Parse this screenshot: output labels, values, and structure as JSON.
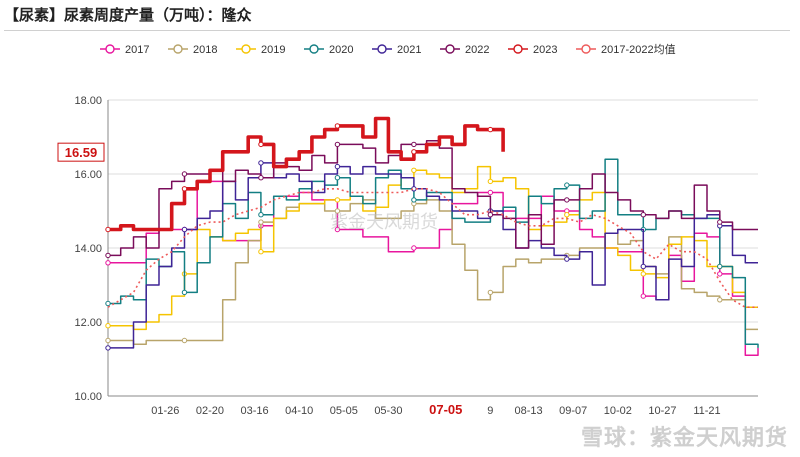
{
  "header": {
    "title": "【尿素】尿素周度产量（万吨）：隆众"
  },
  "watermark": "雪球：紫金天风期货",
  "center_watermark": "紫金天风期货",
  "colors": {
    "2017": "#e8169e",
    "2018": "#b8a46a",
    "2019": "#f5c400",
    "2020": "#137f83",
    "2021": "#3f2496",
    "2022": "#7a0c5a",
    "2023": "#d4161c",
    "avg": "#ee5a5a",
    "current_label": "#cc1111"
  },
  "chart_data": {
    "type": "line",
    "title": "【尿素】尿素周度产量（万吨）：隆众",
    "legend_position": "top",
    "ylim": [
      10,
      18
    ],
    "yticks": [
      "10.00",
      "12.00",
      "14.00",
      "16.00",
      "18.00"
    ],
    "x_tick_labels": [
      "01-26",
      "02-20",
      "03-16",
      "04-10",
      "05-05",
      "05-30",
      "07-05",
      "9",
      "08-13",
      "09-07",
      "10-02",
      "10-27",
      "11-21"
    ],
    "x_tick_weeks": [
      4.5,
      8,
      11.5,
      15,
      18.5,
      22,
      26.5,
      30,
      33,
      36.5,
      40,
      43.5,
      47
    ],
    "highlight_tick": "07-05",
    "current_value": 16.59,
    "series": [
      {
        "name": "2017",
        "step": true,
        "values": [
          13.6,
          13.6,
          13.6,
          14.4,
          14.5,
          14.5,
          14.5,
          15.8,
          15.8,
          14.2,
          14.2,
          14.2,
          14.6,
          15.4,
          15.4,
          15.5,
          15.3,
          15.3,
          14.5,
          14.5,
          14.3,
          14.3,
          13.9,
          13.9,
          14.0,
          14.0,
          14.5,
          15.2,
          15.2,
          15.5,
          15.5,
          15.0,
          14.8,
          14.8,
          15.4,
          15.0,
          15.0,
          14.5,
          14.3,
          14.0,
          13.9,
          13.9,
          12.7,
          12.6,
          13.8,
          13.1,
          14.4,
          14.3,
          13.3,
          12.7,
          11.1,
          11.3
        ]
      },
      {
        "name": "2018",
        "step": true,
        "values": [
          11.5,
          11.5,
          11.4,
          11.5,
          11.5,
          11.5,
          11.5,
          11.5,
          11.5,
          12.6,
          13.6,
          14.2,
          14.7,
          14.8,
          15.1,
          15.2,
          15.2,
          15.0,
          15.0,
          15.2,
          15.3,
          14.8,
          14.8,
          15.0,
          15.2,
          15.3,
          15.0,
          14.1,
          13.4,
          12.6,
          12.8,
          13.5,
          13.7,
          13.6,
          13.7,
          13.7,
          13.8,
          14.0,
          14.0,
          14.4,
          14.1,
          14.2,
          13.5,
          13.3,
          14.3,
          12.9,
          12.8,
          12.7,
          12.6,
          12.6,
          11.8,
          11.8
        ]
      },
      {
        "name": "2019",
        "step": true,
        "values": [
          11.9,
          11.9,
          11.8,
          12.0,
          12.2,
          12.7,
          13.3,
          14.5,
          14.3,
          14.2,
          14.4,
          14.5,
          13.9,
          14.8,
          15.0,
          15.2,
          15.2,
          15.3,
          15.3,
          15.4,
          15.0,
          15.1,
          15.7,
          15.9,
          16.1,
          16.0,
          15.9,
          15.5,
          15.6,
          16.2,
          15.8,
          15.9,
          15.6,
          14.5,
          14.6,
          14.7,
          14.9,
          15.3,
          15.5,
          14.0,
          13.8,
          13.4,
          13.3,
          13.2,
          14.1,
          14.3,
          14.2,
          13.5,
          13.5,
          12.8,
          12.4,
          12.4
        ]
      },
      {
        "name": "2020",
        "step": true,
        "values": [
          12.5,
          12.7,
          12.6,
          13.7,
          13.5,
          13.9,
          12.8,
          13.6,
          14.3,
          15.2,
          14.8,
          15.5,
          14.9,
          15.4,
          15.3,
          15.6,
          15.8,
          15.7,
          15.9,
          15.4,
          15.2,
          15.9,
          16.1,
          15.6,
          15.3,
          15.5,
          15.5,
          14.8,
          14.7,
          14.7,
          15.0,
          15.1,
          14.7,
          15.4,
          15.2,
          15.6,
          15.7,
          14.8,
          15.0,
          16.4,
          14.9,
          14.9,
          14.5,
          14.8,
          15.0,
          14.9,
          14.8,
          14.8,
          13.5,
          13.2,
          11.4,
          11.3
        ]
      },
      {
        "name": "2021",
        "step": true,
        "values": [
          11.3,
          11.3,
          12.0,
          13.0,
          13.5,
          14.0,
          14.5,
          14.8,
          15.0,
          15.8,
          15.3,
          15.9,
          16.3,
          15.9,
          16.0,
          15.8,
          15.5,
          16.0,
          16.2,
          16.0,
          16.2,
          16.0,
          16.0,
          15.9,
          15.6,
          15.4,
          15.3,
          15.0,
          15.0,
          14.8,
          15.0,
          14.5,
          14.0,
          14.2,
          14.0,
          13.8,
          13.7,
          13.9,
          13.0,
          14.4,
          14.5,
          14.5,
          13.5,
          12.6,
          13.7,
          13.5,
          14.8,
          14.9,
          14.6,
          13.8,
          13.6,
          13.6
        ]
      },
      {
        "name": "2022",
        "step": true,
        "values": [
          13.8,
          14.0,
          14.3,
          14.0,
          15.6,
          15.8,
          16.0,
          16.0,
          16.1,
          15.8,
          16.1,
          16.0,
          15.9,
          16.3,
          16.2,
          16.1,
          16.5,
          16.3,
          16.8,
          16.8,
          16.7,
          16.3,
          16.5,
          16.8,
          16.8,
          16.9,
          16.7,
          15.6,
          15.5,
          15.4,
          14.9,
          14.8,
          14.0,
          14.9,
          14.1,
          15.3,
          15.3,
          15.6,
          16.0,
          15.5,
          15.3,
          15.0,
          14.9,
          14.8,
          15.0,
          14.8,
          15.7,
          15.0,
          14.7,
          14.5,
          14.5,
          14.5
        ]
      },
      {
        "name": "2023",
        "step": true,
        "values": [
          14.5,
          14.6,
          14.5,
          14.5,
          14.5,
          15.2,
          15.6,
          15.8,
          16.1,
          16.6,
          16.6,
          17.0,
          16.8,
          16.2,
          16.4,
          16.6,
          17.0,
          17.2,
          17.3,
          17.3,
          17.0,
          17.5,
          16.6,
          16.4,
          16.6,
          16.8,
          17.0,
          16.8,
          17.3,
          17.2,
          17.2,
          16.6
        ]
      },
      {
        "name": "2017-2022均值",
        "step": false,
        "values": [
          12.4,
          12.6,
          12.8,
          13.4,
          13.7,
          13.9,
          14.3,
          14.6,
          14.7,
          14.7,
          14.9,
          15.0,
          15.1,
          15.3,
          15.4,
          15.5,
          15.5,
          15.6,
          15.6,
          15.5,
          15.5,
          15.5,
          15.5,
          15.5,
          15.6,
          15.6,
          15.5,
          15.2,
          14.9,
          14.9,
          15.0,
          14.9,
          14.7,
          14.6,
          14.6,
          14.8,
          14.8,
          14.7,
          14.9,
          14.8,
          14.6,
          14.4,
          13.9,
          13.7,
          14.1,
          13.9,
          13.9,
          13.7,
          13.1,
          12.6,
          12.4,
          12.4
        ]
      }
    ]
  }
}
